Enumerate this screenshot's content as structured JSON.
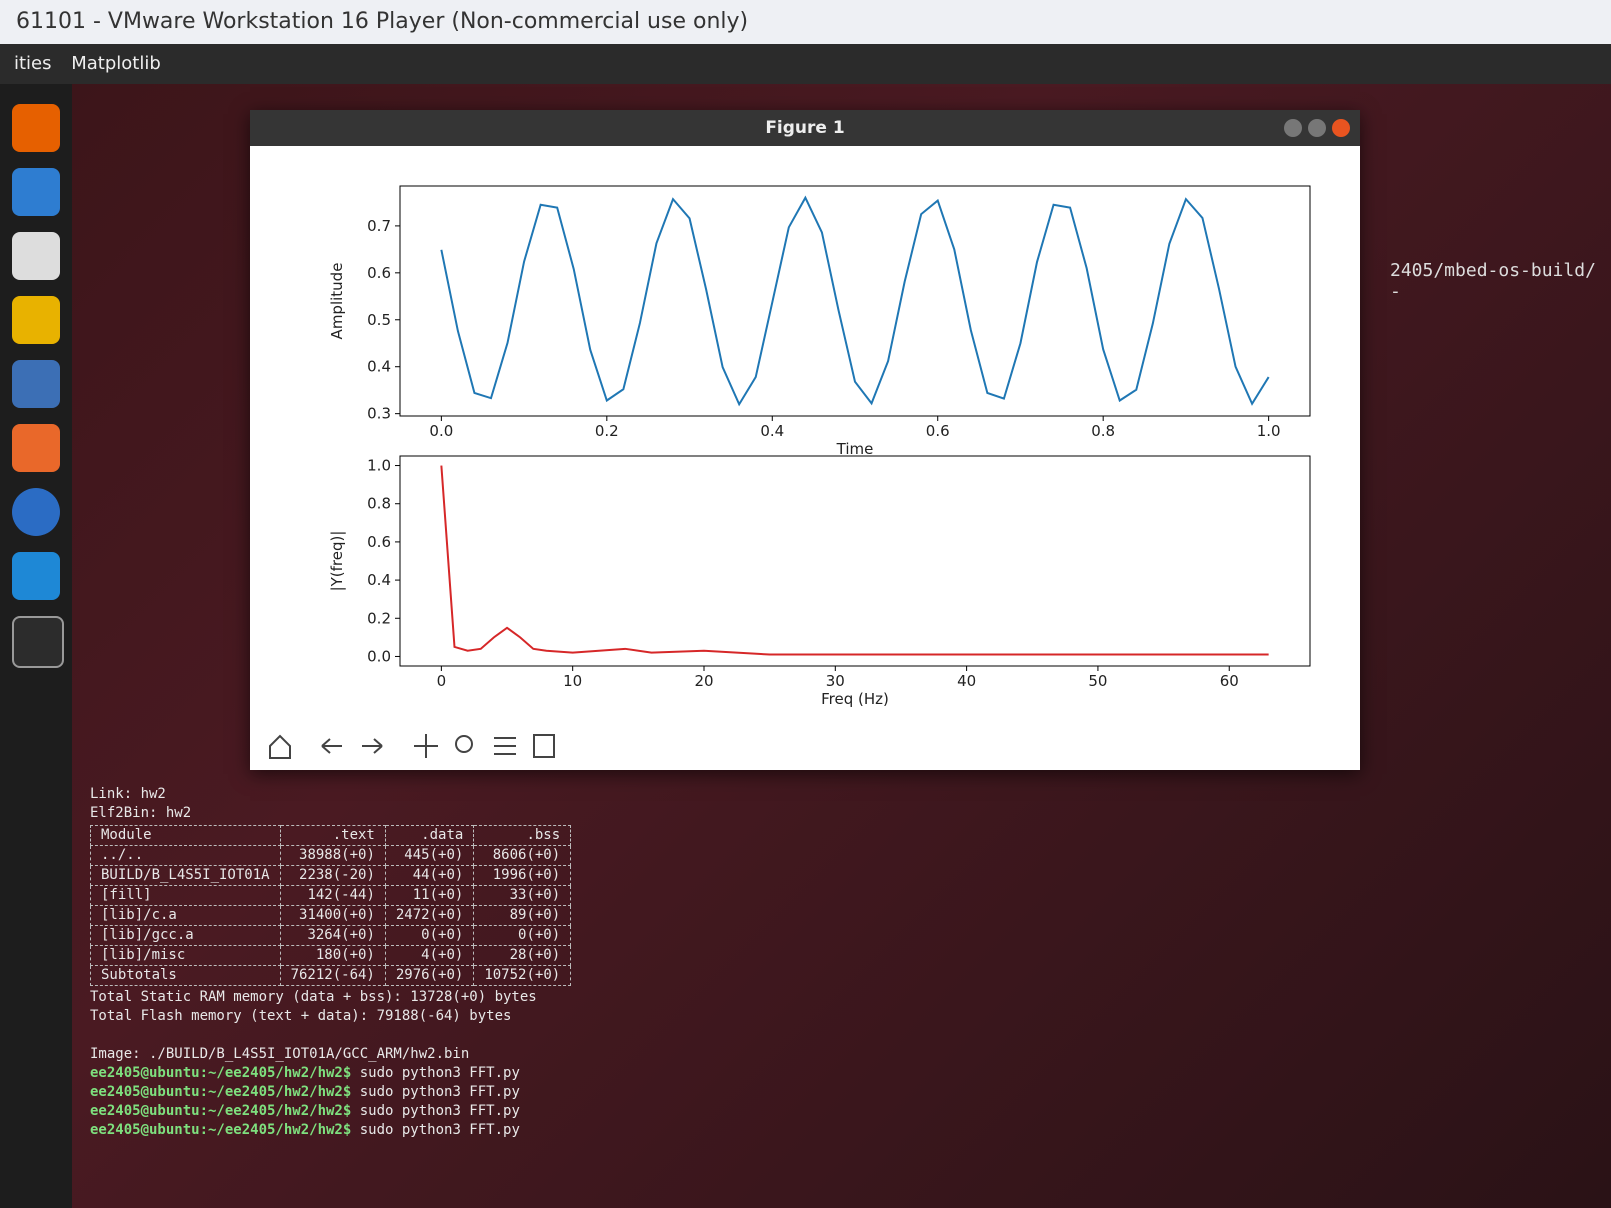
{
  "window_title": "61101 - VMware Workstation 16 Player (Non-commercial use only)",
  "menu": "Matplotlib",
  "sidebar_label": "ities",
  "figure_title": "Figure 1",
  "terminal_path": "2405/mbed-os-build/ -",
  "chart_data": [
    {
      "type": "line",
      "x_label": "Time",
      "y_label": "Amplitude",
      "color": "#1f77b4",
      "x": [
        0,
        0.02,
        0.04,
        0.06,
        0.08,
        0.1,
        0.12,
        0.14,
        0.16,
        0.18,
        0.2,
        0.22,
        0.24,
        0.26,
        0.28,
        0.3,
        0.32,
        0.34,
        0.36,
        0.38,
        0.4,
        0.42,
        0.44,
        0.46,
        0.48,
        0.5,
        0.52,
        0.54,
        0.56,
        0.58,
        0.6,
        0.62,
        0.64,
        0.66,
        0.68,
        0.7,
        0.72,
        0.74,
        0.76,
        0.78,
        0.8,
        0.82,
        0.84,
        0.86,
        0.88,
        0.9,
        0.92,
        0.94,
        0.96,
        0.98,
        1.0
      ],
      "values": [
        0.649,
        0.476,
        0.344,
        0.333,
        0.451,
        0.624,
        0.745,
        0.739,
        0.608,
        0.436,
        0.328,
        0.352,
        0.493,
        0.663,
        0.757,
        0.716,
        0.565,
        0.399,
        0.32,
        0.378,
        0.537,
        0.697,
        0.76,
        0.686,
        0.521,
        0.368,
        0.322,
        0.412,
        0.581,
        0.725,
        0.754,
        0.65,
        0.478,
        0.344,
        0.332,
        0.45,
        0.623,
        0.745,
        0.739,
        0.61,
        0.437,
        0.328,
        0.351,
        0.492,
        0.662,
        0.757,
        0.717,
        0.566,
        0.4,
        0.321,
        0.378
      ],
      "xlim": [
        -0.05,
        1.05
      ],
      "ylim": [
        0.295,
        0.785
      ],
      "xticks": [
        {
          "value": 0,
          "label": "0.0"
        },
        0.2,
        0.4,
        0.6,
        0.8,
        {
          "value": 1,
          "label": "1.0"
        }
      ],
      "yticks": [
        0.3,
        0.4,
        0.5,
        0.6,
        0.7
      ]
    },
    {
      "type": "line",
      "x_label": "Freq (Hz)",
      "y_label": "|Y(freq)|",
      "color": "#d62728",
      "x": [
        0,
        1,
        2,
        3,
        4,
        5,
        6,
        7,
        8,
        10,
        12,
        14,
        16,
        20,
        25,
        30,
        40,
        50,
        60,
        63
      ],
      "values": [
        1.0,
        0.05,
        0.03,
        0.04,
        0.1,
        0.15,
        0.1,
        0.04,
        0.03,
        0.02,
        0.03,
        0.04,
        0.02,
        0.03,
        0.01,
        0.01,
        0.01,
        0.01,
        0.01,
        0.01
      ],
      "xlim": [
        -3.15,
        66.15
      ],
      "ylim": [
        -0.05,
        1.05
      ],
      "xticks": [
        0,
        10,
        20,
        30,
        40,
        50,
        60
      ],
      "yticks": [
        {
          "value": 0,
          "label": "0.0"
        },
        0.2,
        0.4,
        0.6,
        0.8,
        {
          "value": 1,
          "label": "1.0"
        }
      ]
    }
  ],
  "terminal": {
    "lines_before": [
      "Link: hw2",
      "Elf2Bin: hw2"
    ],
    "table": {
      "columns": [
        "Module",
        ".text",
        ".data",
        ".bss"
      ],
      "rows": [
        [
          "../..",
          "38988(+0)",
          "445(+0)",
          "8606(+0)"
        ],
        [
          "BUILD/B_L4S5I_IOT01A",
          "2238(-20)",
          "44(+0)",
          "1996(+0)"
        ],
        [
          "[fill]",
          "142(-44)",
          "11(+0)",
          "33(+0)"
        ],
        [
          "[lib]/c.a",
          "31400(+0)",
          "2472(+0)",
          "89(+0)"
        ],
        [
          "[lib]/gcc.a",
          "3264(+0)",
          "0(+0)",
          "0(+0)"
        ],
        [
          "[lib]/misc",
          "180(+0)",
          "4(+0)",
          "28(+0)"
        ],
        [
          "Subtotals",
          "76212(-64)",
          "2976(+0)",
          "10752(+0)"
        ]
      ]
    },
    "lines_after": [
      "Total Static RAM memory (data + bss): 13728(+0) bytes",
      "Total Flash memory (text + data): 79188(-64) bytes",
      "",
      "Image: ./BUILD/B_L4S5I_IOT01A/GCC_ARM/hw2.bin"
    ],
    "prompts": [
      {
        "prompt": "ee2405@ubuntu:~/ee2405/hw2/hw2$",
        "command": "sudo python3 FFT.py"
      },
      {
        "prompt": "ee2405@ubuntu:~/ee2405/hw2/hw2$",
        "command": "sudo python3 FFT.py"
      },
      {
        "prompt": "ee2405@ubuntu:~/ee2405/hw2/hw2$",
        "command": "sudo python3 FFT.py"
      },
      {
        "prompt": "ee2405@ubuntu:~/ee2405/hw2/hw2$",
        "command": "sudo python3 FFT.py"
      }
    ]
  }
}
